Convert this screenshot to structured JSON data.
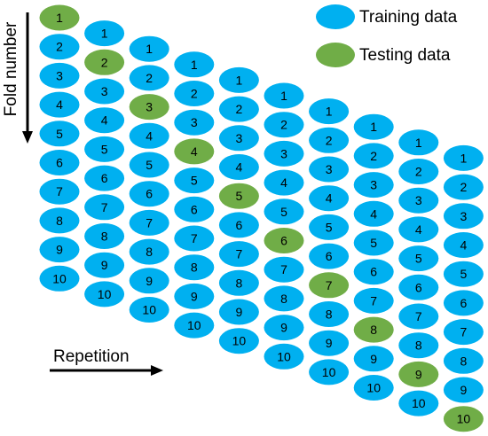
{
  "legend": {
    "training_label": "Training data",
    "testing_label": "Testing data"
  },
  "axes": {
    "fold_title": "Fold number",
    "repetition_title": "Repetition"
  },
  "colors": {
    "training": "#00b0f0",
    "testing": "#70ad47",
    "arrow": "#000000"
  },
  "folds": [
    "1",
    "2",
    "3",
    "4",
    "5",
    "6",
    "7",
    "8",
    "9",
    "10"
  ],
  "repetitions": [
    {
      "testing_fold": 1
    },
    {
      "testing_fold": 2
    },
    {
      "testing_fold": 3
    },
    {
      "testing_fold": 4
    },
    {
      "testing_fold": 5
    },
    {
      "testing_fold": 6
    },
    {
      "testing_fold": 7
    },
    {
      "testing_fold": 8
    },
    {
      "testing_fold": 9
    },
    {
      "testing_fold": 10
    }
  ]
}
